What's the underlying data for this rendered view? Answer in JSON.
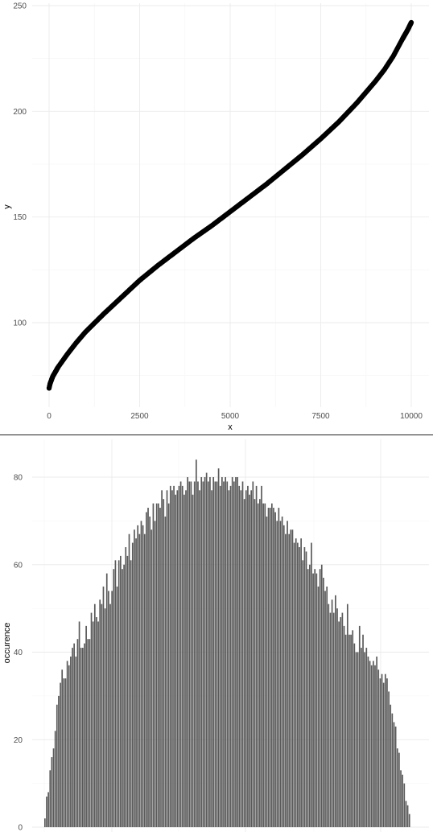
{
  "chart_data": [
    {
      "type": "scatter",
      "xlabel": "x",
      "ylabel": "y",
      "xlim": [
        0,
        10000
      ],
      "ylim": [
        68,
        250
      ],
      "x_ticks": [
        0,
        2500,
        5000,
        7500,
        10000
      ],
      "y_ticks": [
        100,
        150,
        200,
        250
      ],
      "x_tick_labels": [
        "0",
        "2500",
        "5000",
        "7500",
        "10000"
      ],
      "y_tick_labels": [
        "100",
        "150",
        "200",
        "250"
      ],
      "grid": true,
      "point_color": "#000000",
      "curve": [
        [
          0,
          69
        ],
        [
          25,
          71
        ],
        [
          100,
          74.5
        ],
        [
          250,
          79
        ],
        [
          500,
          85
        ],
        [
          750,
          90.5
        ],
        [
          1000,
          95.5
        ],
        [
          1500,
          104
        ],
        [
          2000,
          112
        ],
        [
          2500,
          120
        ],
        [
          3000,
          127
        ],
        [
          3500,
          133.5
        ],
        [
          4000,
          140
        ],
        [
          4500,
          146
        ],
        [
          5000,
          152.5
        ],
        [
          5500,
          159
        ],
        [
          6000,
          165.5
        ],
        [
          6500,
          172.5
        ],
        [
          7000,
          179.5
        ],
        [
          7500,
          187
        ],
        [
          8000,
          195
        ],
        [
          8500,
          204
        ],
        [
          9000,
          214
        ],
        [
          9250,
          219.5
        ],
        [
          9500,
          226
        ],
        [
          9750,
          234
        ],
        [
          9900,
          238.5
        ],
        [
          10000,
          242
        ]
      ]
    },
    {
      "type": "bar",
      "xlabel": "",
      "ylabel": "occurence",
      "ylim": [
        0,
        86
      ],
      "y_ticks": [
        0,
        20,
        40,
        60,
        80
      ],
      "y_tick_labels": [
        "0",
        "20",
        "40",
        "60",
        "80"
      ],
      "grid": true,
      "bar_color": "#595959",
      "values": [
        2,
        7,
        8,
        13,
        16,
        18,
        22,
        28,
        30,
        33,
        36,
        34,
        34,
        38,
        37,
        39,
        41,
        42,
        39,
        43,
        47,
        41,
        41,
        42,
        46,
        43,
        43,
        49,
        47,
        51,
        48,
        47,
        52,
        51,
        55,
        50,
        58,
        54,
        51,
        54,
        59,
        61,
        55,
        61,
        62,
        59,
        60,
        64,
        62,
        67,
        61,
        65,
        68,
        66,
        69,
        67,
        70,
        69,
        67,
        72,
        73,
        71,
        68,
        74,
        70,
        74,
        74,
        73,
        77,
        75,
        71,
        77,
        74,
        78,
        77,
        78,
        76,
        77,
        78,
        79,
        78,
        76,
        77,
        80,
        79,
        79,
        76,
        79,
        84,
        79,
        77,
        80,
        79,
        80,
        81,
        79,
        80,
        77,
        80,
        79,
        79,
        82,
        78,
        80,
        79,
        80,
        79,
        77,
        78,
        80,
        79,
        80,
        80,
        78,
        77,
        79,
        75,
        77,
        78,
        76,
        77,
        79,
        75,
        78,
        74,
        75,
        78,
        74,
        74,
        71,
        73,
        73,
        74,
        73,
        72,
        70,
        73,
        70,
        71,
        69,
        67,
        70,
        67,
        68,
        68,
        65,
        66,
        65,
        64,
        66,
        61,
        64,
        63,
        59,
        60,
        65,
        58,
        59,
        58,
        55,
        59,
        60,
        57,
        54,
        55,
        51,
        49,
        52,
        49,
        53,
        50,
        47,
        48,
        49,
        46,
        44,
        51,
        44,
        44,
        45,
        42,
        40,
        40,
        46,
        41,
        44,
        40,
        41,
        39,
        38,
        37,
        38,
        37,
        39,
        36,
        34,
        35,
        33,
        35,
        34,
        31,
        28,
        26,
        24,
        23,
        18,
        17,
        13,
        12,
        10,
        6,
        5,
        3
      ]
    }
  ]
}
